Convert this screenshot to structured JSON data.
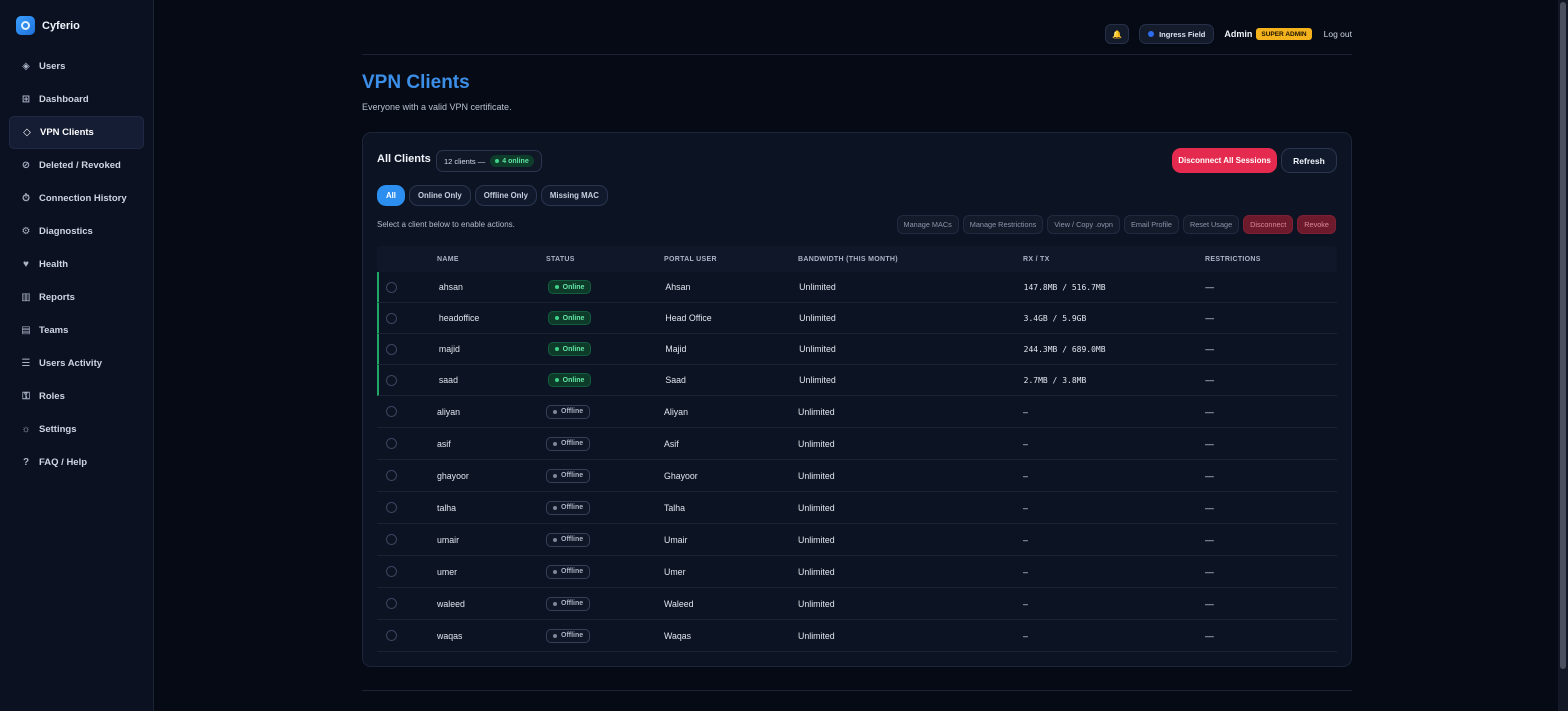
{
  "brand": {
    "name": "Cyferio",
    "logo_icon": "cyferio-logo"
  },
  "sidebar": {
    "items": [
      {
        "label": "Users",
        "icon": "◈",
        "icon_name": "users-icon",
        "active": false
      },
      {
        "label": "Dashboard",
        "icon": "⊞",
        "icon_name": "dashboard-icon",
        "active": false
      },
      {
        "label": "VPN Clients",
        "icon": "◇",
        "icon_name": "vpn-clients-icon",
        "active": true
      },
      {
        "label": "Deleted / Revoked",
        "icon": "⊘",
        "icon_name": "revoked-icon",
        "active": false
      },
      {
        "label": "Connection History",
        "icon": "⏱",
        "icon_name": "history-icon",
        "active": false
      },
      {
        "label": "Diagnostics",
        "icon": "⚙",
        "icon_name": "diagnostics-icon",
        "active": false
      },
      {
        "label": "Health",
        "icon": "♥",
        "icon_name": "health-icon",
        "active": false
      },
      {
        "label": "Reports",
        "icon": "▥",
        "icon_name": "reports-icon",
        "active": false
      },
      {
        "label": "Teams",
        "icon": "▤",
        "icon_name": "teams-icon",
        "active": false
      },
      {
        "label": "Users Activity",
        "icon": "☰",
        "icon_name": "activity-icon",
        "active": false
      },
      {
        "label": "Roles",
        "icon": "⚿",
        "icon_name": "roles-icon",
        "active": false
      },
      {
        "label": "Settings",
        "icon": "☼",
        "icon_name": "settings-icon",
        "active": false
      },
      {
        "label": "FAQ / Help",
        "icon": "?",
        "icon_name": "help-icon",
        "active": false
      }
    ]
  },
  "topbar": {
    "bell_icon": "🔔",
    "field": "Ingress Field",
    "admin_name": "Admin",
    "role_badge": "SUPER ADMIN",
    "logout": "Log out"
  },
  "page": {
    "title": "VPN Clients",
    "subtitle": "Everyone with a valid VPN certificate."
  },
  "card": {
    "title": "All Clients",
    "count_text": "12 clients —",
    "online_text": "4 online",
    "disconnect_all": "Disconnect All Sessions",
    "refresh": "Refresh",
    "filters": [
      "All",
      "Online Only",
      "Offline Only",
      "Missing MAC"
    ],
    "hint": "Select a client below to enable actions.",
    "actions": [
      "Manage MACs",
      "Manage Restrictions",
      "View / Copy .ovpn",
      "Email Profile",
      "Reset Usage",
      "Disconnect",
      "Revoke"
    ]
  },
  "table": {
    "headers": [
      "NAME",
      "STATUS",
      "PORTAL USER",
      "BANDWIDTH (THIS MONTH)",
      "RX / TX",
      "RESTRICTIONS"
    ],
    "rows": [
      {
        "name": "ahsan",
        "status": "Online",
        "portal_user": "Ahsan",
        "bandwidth": "Unlimited",
        "rxtx": "147.8MB / 516.7MB",
        "restrictions": "—"
      },
      {
        "name": "headoffice",
        "status": "Online",
        "portal_user": "Head Office",
        "bandwidth": "Unlimited",
        "rxtx": "3.4GB / 5.9GB",
        "restrictions": "—"
      },
      {
        "name": "majid",
        "status": "Online",
        "portal_user": "Majid",
        "bandwidth": "Unlimited",
        "rxtx": "244.3MB / 689.0MB",
        "restrictions": "—"
      },
      {
        "name": "saad",
        "status": "Online",
        "portal_user": "Saad",
        "bandwidth": "Unlimited",
        "rxtx": "2.7MB / 3.8MB",
        "restrictions": "—"
      },
      {
        "name": "aliyan",
        "status": "Offline",
        "portal_user": "Aliyan",
        "bandwidth": "Unlimited",
        "rxtx": "–",
        "restrictions": "—"
      },
      {
        "name": "asif",
        "status": "Offline",
        "portal_user": "Asif",
        "bandwidth": "Unlimited",
        "rxtx": "–",
        "restrictions": "—"
      },
      {
        "name": "ghayoor",
        "status": "Offline",
        "portal_user": "Ghayoor",
        "bandwidth": "Unlimited",
        "rxtx": "–",
        "restrictions": "—"
      },
      {
        "name": "talha",
        "status": "Offline",
        "portal_user": "Talha",
        "bandwidth": "Unlimited",
        "rxtx": "–",
        "restrictions": "—"
      },
      {
        "name": "umair",
        "status": "Offline",
        "portal_user": "Umair",
        "bandwidth": "Unlimited",
        "rxtx": "–",
        "restrictions": "—"
      },
      {
        "name": "umer",
        "status": "Offline",
        "portal_user": "Umer",
        "bandwidth": "Unlimited",
        "rxtx": "–",
        "restrictions": "—"
      },
      {
        "name": "waleed",
        "status": "Offline",
        "portal_user": "Waleed",
        "bandwidth": "Unlimited",
        "rxtx": "–",
        "restrictions": "—"
      },
      {
        "name": "waqas",
        "status": "Offline",
        "portal_user": "Waqas",
        "bandwidth": "Unlimited",
        "rxtx": "–",
        "restrictions": "—"
      }
    ]
  },
  "colors": {
    "accent": "#2c8ff0",
    "title": "#3c8fe8",
    "danger": "#e42b4f",
    "online": "#3fd48a",
    "badge": "#f4b21d"
  }
}
